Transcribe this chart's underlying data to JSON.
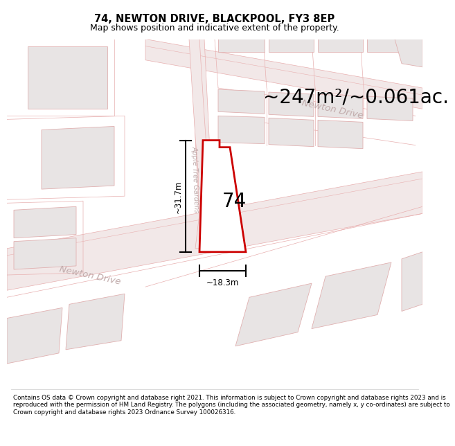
{
  "title": "74, NEWTON DRIVE, BLACKPOOL, FY3 8EP",
  "subtitle": "Map shows position and indicative extent of the property.",
  "area_text": "~247m²/~0.061ac.",
  "label_74": "74",
  "dim_width": "~18.3m",
  "dim_height": "~31.7m",
  "street_newton_drive_1": "Newton Drive",
  "street_newton_drive_2": "Newton Drive",
  "street_apple": "Apple Tree Gardens",
  "footer_text": "Contains OS data © Crown copyright and database right 2021. This information is subject to Crown copyright and database rights 2023 and is reproduced with the permission of HM Land Registry. The polygons (including the associated geometry, namely x, y co-ordinates) are subject to Crown copyright and database rights 2023 Ordnance Survey 100026316.",
  "bg_color": "#ffffff",
  "map_bg": "#ffffff",
  "plot_color": "#ffffff",
  "plot_edge_color": "#cc0000",
  "road_fill": "#f2e8e8",
  "road_edge": "#e8b0b0",
  "building_fill": "#e8e4e4",
  "building_edge": "#e0b0b0",
  "title_fontsize": 10.5,
  "subtitle_fontsize": 9,
  "area_fontsize": 20,
  "footer_fontsize": 6.3
}
